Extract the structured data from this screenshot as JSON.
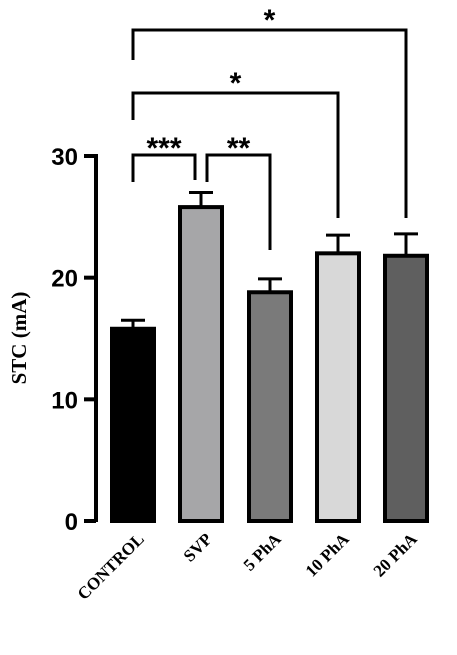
{
  "chart_data": {
    "type": "bar",
    "title": "",
    "xlabel": "",
    "ylabel": "STC (mA)",
    "ylim": [
      0,
      30
    ],
    "yticks": [
      0,
      10,
      20,
      30
    ],
    "categories": [
      "CONTROL",
      "SVP",
      "5 PhA",
      "10 PhA",
      "20 PhA"
    ],
    "values": [
      15.8,
      25.8,
      18.8,
      22.0,
      21.8
    ],
    "errors": [
      0.7,
      1.2,
      1.1,
      1.5,
      1.8
    ],
    "colors": [
      "#000000",
      "#a6a6a8",
      "#7a7a7a",
      "#d8d8d8",
      "#5f5f5f"
    ],
    "significance": [
      {
        "from": "CONTROL",
        "to": "SVP",
        "label": "***"
      },
      {
        "from": "SVP",
        "to": "5 PhA",
        "label": "**"
      },
      {
        "from": "CONTROL",
        "to": "10 PhA",
        "label": "*"
      },
      {
        "from": "CONTROL",
        "to": "20 PhA",
        "label": "*"
      }
    ]
  }
}
